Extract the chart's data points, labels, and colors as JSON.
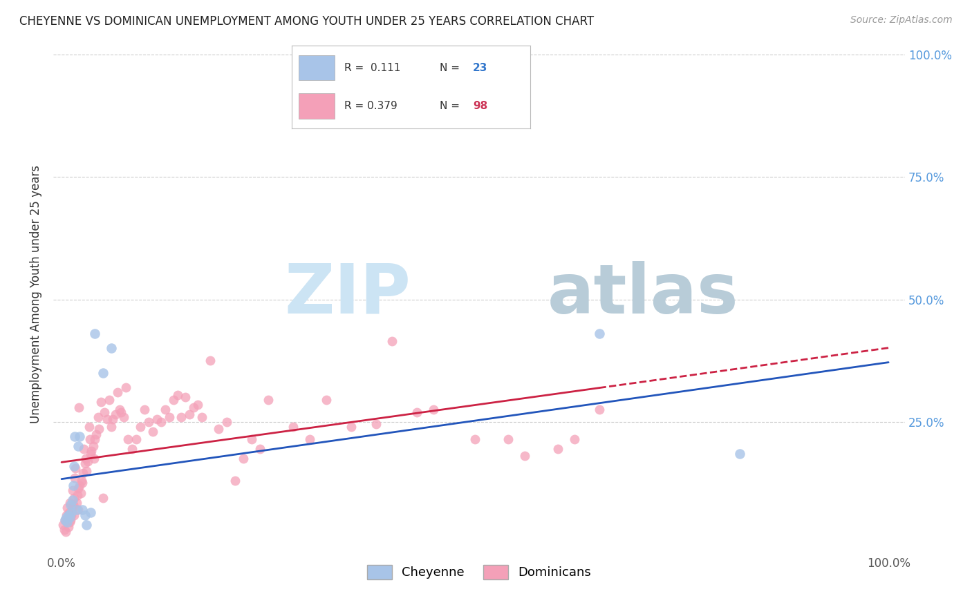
{
  "title": "CHEYENNE VS DOMINICAN UNEMPLOYMENT AMONG YOUTH UNDER 25 YEARS CORRELATION CHART",
  "source": "Source: ZipAtlas.com",
  "ylabel": "Unemployment Among Youth under 25 years",
  "xlim": [
    0.0,
    1.0
  ],
  "ylim": [
    0.0,
    1.0
  ],
  "cheyenne_color": "#a8c4e8",
  "dominican_color": "#f4a0b8",
  "cheyenne_line_color": "#2255bb",
  "dominican_line_color": "#cc2244",
  "background_color": "#ffffff",
  "watermark_zip": "ZIP",
  "watermark_atlas": "atlas",
  "watermark_color_zip": "#d8eef8",
  "watermark_color_atlas": "#c8d8e8",
  "cheyenne_R": 0.111,
  "cheyenne_N": 23,
  "dominican_R": 0.379,
  "dominican_N": 98,
  "cheyenne_scatter_x": [
    0.004,
    0.006,
    0.007,
    0.008,
    0.01,
    0.011,
    0.012,
    0.013,
    0.014,
    0.015,
    0.016,
    0.018,
    0.02,
    0.022,
    0.025,
    0.028,
    0.03,
    0.035,
    0.04,
    0.05,
    0.06,
    0.65,
    0.82
  ],
  "cheyenne_scatter_y": [
    0.05,
    0.055,
    0.045,
    0.06,
    0.055,
    0.08,
    0.065,
    0.09,
    0.12,
    0.16,
    0.22,
    0.07,
    0.2,
    0.22,
    0.07,
    0.06,
    0.04,
    0.065,
    0.43,
    0.35,
    0.4,
    0.43,
    0.185
  ],
  "dominican_scatter_x": [
    0.002,
    0.003,
    0.004,
    0.005,
    0.006,
    0.007,
    0.008,
    0.009,
    0.01,
    0.01,
    0.011,
    0.012,
    0.013,
    0.013,
    0.014,
    0.015,
    0.015,
    0.016,
    0.017,
    0.018,
    0.019,
    0.02,
    0.02,
    0.021,
    0.022,
    0.023,
    0.024,
    0.025,
    0.026,
    0.027,
    0.028,
    0.029,
    0.03,
    0.032,
    0.033,
    0.034,
    0.035,
    0.036,
    0.038,
    0.039,
    0.04,
    0.042,
    0.044,
    0.045,
    0.048,
    0.05,
    0.052,
    0.055,
    0.058,
    0.06,
    0.062,
    0.065,
    0.068,
    0.07,
    0.072,
    0.075,
    0.078,
    0.08,
    0.085,
    0.09,
    0.095,
    0.1,
    0.105,
    0.11,
    0.115,
    0.12,
    0.125,
    0.13,
    0.135,
    0.14,
    0.145,
    0.15,
    0.155,
    0.16,
    0.165,
    0.17,
    0.18,
    0.19,
    0.2,
    0.21,
    0.22,
    0.23,
    0.24,
    0.25,
    0.28,
    0.3,
    0.32,
    0.35,
    0.38,
    0.4,
    0.43,
    0.45,
    0.5,
    0.54,
    0.56,
    0.6,
    0.62,
    0.65
  ],
  "dominican_scatter_y": [
    0.04,
    0.03,
    0.05,
    0.025,
    0.06,
    0.075,
    0.035,
    0.065,
    0.085,
    0.045,
    0.05,
    0.06,
    0.11,
    0.075,
    0.08,
    0.095,
    0.06,
    0.135,
    0.155,
    0.085,
    0.1,
    0.115,
    0.07,
    0.28,
    0.12,
    0.105,
    0.13,
    0.125,
    0.145,
    0.195,
    0.165,
    0.175,
    0.15,
    0.17,
    0.24,
    0.215,
    0.185,
    0.19,
    0.2,
    0.175,
    0.215,
    0.225,
    0.26,
    0.235,
    0.29,
    0.095,
    0.27,
    0.255,
    0.295,
    0.24,
    0.255,
    0.265,
    0.31,
    0.275,
    0.27,
    0.26,
    0.32,
    0.215,
    0.195,
    0.215,
    0.24,
    0.275,
    0.25,
    0.23,
    0.255,
    0.25,
    0.275,
    0.26,
    0.295,
    0.305,
    0.26,
    0.3,
    0.265,
    0.28,
    0.285,
    0.26,
    0.375,
    0.235,
    0.25,
    0.13,
    0.175,
    0.215,
    0.195,
    0.295,
    0.24,
    0.215,
    0.295,
    0.24,
    0.245,
    0.415,
    0.27,
    0.275,
    0.215,
    0.215,
    0.18,
    0.195,
    0.215,
    0.275
  ]
}
